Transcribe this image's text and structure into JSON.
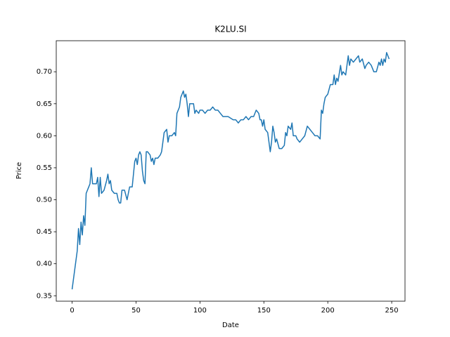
{
  "chart_data": {
    "type": "line",
    "title": "K2LU.SI",
    "x_label": "Date",
    "y_label": "Price",
    "x": [
      0,
      2,
      4,
      5,
      6,
      7,
      8,
      9,
      10,
      11,
      13,
      14,
      15,
      16,
      19,
      20,
      21,
      22,
      23,
      25,
      27,
      28,
      29,
      30,
      31,
      33,
      35,
      36,
      37,
      38,
      39,
      41,
      43,
      45,
      47,
      48,
      49,
      50,
      51,
      52,
      53,
      54,
      55,
      56,
      57,
      58,
      59,
      61,
      62,
      63,
      64,
      65,
      67,
      69,
      70,
      71,
      72,
      74,
      75,
      76,
      78,
      80,
      81,
      82,
      84,
      85,
      86,
      87,
      88,
      89,
      90,
      91,
      92,
      95,
      96,
      97,
      99,
      100,
      102,
      104,
      106,
      108,
      110,
      112,
      114,
      116,
      118,
      122,
      126,
      128,
      130,
      132,
      134,
      136,
      138,
      140,
      142,
      144,
      146,
      147,
      148,
      149,
      150,
      151,
      153,
      154,
      155,
      156,
      157,
      158,
      159,
      160,
      162,
      164,
      166,
      167,
      168,
      169,
      171,
      172,
      173,
      175,
      176,
      178,
      180,
      182,
      184,
      186,
      188,
      190,
      192,
      194,
      195,
      196,
      197,
      198,
      200,
      202,
      204,
      205,
      206,
      207,
      208,
      210,
      211,
      212,
      214,
      216,
      217,
      218,
      220,
      222,
      224,
      225,
      227,
      229,
      230,
      232,
      234,
      236,
      238,
      240,
      241,
      242,
      243,
      244,
      245,
      246,
      248
    ],
    "series": [
      {
        "name": "K2LU.SI",
        "color": "#1f77b4",
        "values": [
          0.36,
          0.39,
          0.42,
          0.455,
          0.43,
          0.465,
          0.445,
          0.475,
          0.46,
          0.51,
          0.52,
          0.525,
          0.55,
          0.525,
          0.525,
          0.535,
          0.505,
          0.535,
          0.51,
          0.515,
          0.53,
          0.54,
          0.525,
          0.53,
          0.515,
          0.51,
          0.51,
          0.5,
          0.495,
          0.495,
          0.515,
          0.515,
          0.5,
          0.52,
          0.52,
          0.54,
          0.56,
          0.565,
          0.555,
          0.57,
          0.575,
          0.57,
          0.545,
          0.53,
          0.525,
          0.575,
          0.575,
          0.57,
          0.56,
          0.565,
          0.555,
          0.565,
          0.565,
          0.57,
          0.575,
          0.59,
          0.605,
          0.61,
          0.59,
          0.6,
          0.6,
          0.605,
          0.6,
          0.635,
          0.645,
          0.66,
          0.665,
          0.67,
          0.66,
          0.665,
          0.65,
          0.63,
          0.65,
          0.65,
          0.635,
          0.64,
          0.635,
          0.64,
          0.64,
          0.635,
          0.64,
          0.64,
          0.645,
          0.64,
          0.64,
          0.635,
          0.63,
          0.63,
          0.625,
          0.625,
          0.62,
          0.625,
          0.625,
          0.63,
          0.625,
          0.63,
          0.63,
          0.64,
          0.635,
          0.625,
          0.625,
          0.615,
          0.625,
          0.61,
          0.605,
          0.59,
          0.575,
          0.59,
          0.615,
          0.605,
          0.59,
          0.595,
          0.58,
          0.58,
          0.585,
          0.605,
          0.6,
          0.615,
          0.61,
          0.62,
          0.6,
          0.6,
          0.595,
          0.59,
          0.595,
          0.6,
          0.615,
          0.61,
          0.605,
          0.6,
          0.6,
          0.595,
          0.64,
          0.635,
          0.65,
          0.66,
          0.665,
          0.68,
          0.68,
          0.695,
          0.68,
          0.69,
          0.685,
          0.71,
          0.695,
          0.7,
          0.695,
          0.725,
          0.71,
          0.72,
          0.715,
          0.72,
          0.725,
          0.715,
          0.72,
          0.705,
          0.71,
          0.715,
          0.71,
          0.7,
          0.7,
          0.715,
          0.71,
          0.72,
          0.71,
          0.72,
          0.715,
          0.73,
          0.72
        ]
      }
    ],
    "xlim": [
      -12.4,
      260.4
    ],
    "xticks": [
      0,
      50,
      100,
      150,
      200,
      250
    ],
    "ylim": [
      0.3415,
      0.7485
    ],
    "yticks": [
      0.35,
      {
        "value": 0.4,
        "label": "0.40"
      },
      0.45,
      {
        "value": 0.5,
        "label": "0.50"
      },
      0.55,
      {
        "value": 0.6,
        "label": "0.60"
      },
      0.65,
      {
        "value": 0.7,
        "label": "0.70"
      }
    ]
  }
}
